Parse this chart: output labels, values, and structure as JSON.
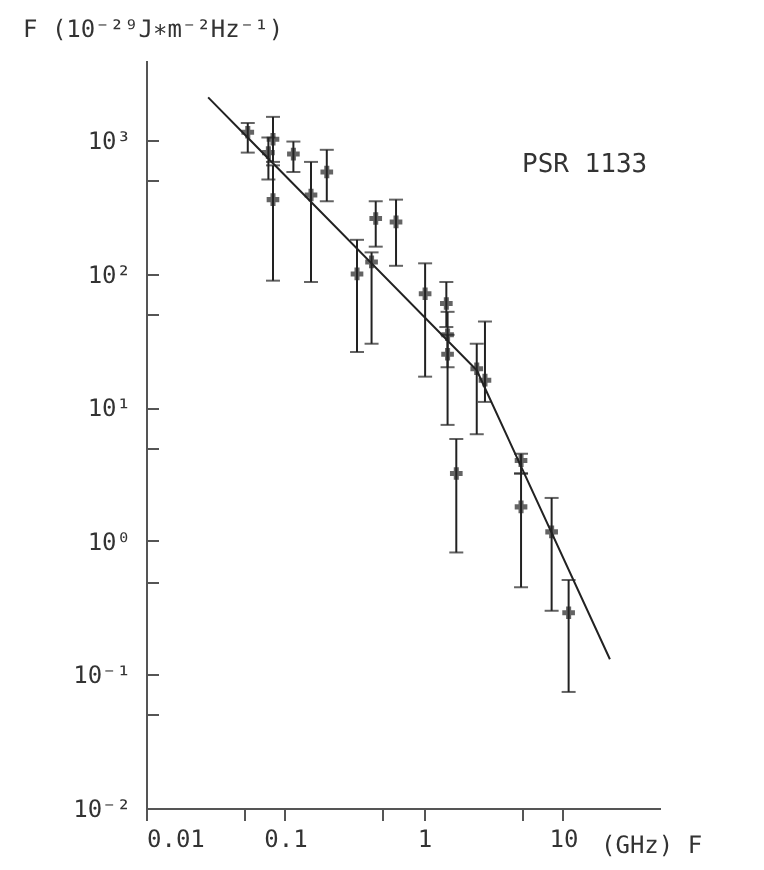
{
  "chart_data": {
    "type": "scatter",
    "ylabel": "F (10⁻²⁹J∗m⁻²Hz⁻¹)",
    "xlabel": "(GHz) F",
    "log": "xy",
    "xlim": [
      0.01,
      50
    ],
    "ylim": [
      0.01,
      4000
    ],
    "xticks": [
      0.01,
      {
        "value": 0.05,
        "label": null
      },
      0.1,
      {
        "value": 0.5,
        "label": null
      },
      1,
      {
        "value": 5,
        "label": null
      },
      10
    ],
    "yticks": [
      {
        "value": 0.01,
        "label": "10⁻²"
      },
      {
        "value": 0.05,
        "label": null
      },
      {
        "value": 0.1,
        "label": "10⁻¹"
      },
      {
        "value": 0.5,
        "label": null
      },
      {
        "value": 1,
        "label": "10⁰"
      },
      {
        "value": 5,
        "label": null
      },
      {
        "value": 10,
        "label": "10¹"
      },
      {
        "value": 50,
        "label": null
      },
      {
        "value": 100,
        "label": "10²"
      },
      {
        "value": 500,
        "label": null
      },
      {
        "value": 1000,
        "label": "10³"
      }
    ],
    "annotations": [
      "PSR 1133"
    ],
    "series": [
      {
        "type": "scatter",
        "color": "#222222",
        "marker": "cross",
        "x": [
          0.054,
          0.076,
          0.082,
          0.082,
          0.115,
          0.154,
          0.2,
          0.33,
          0.42,
          0.45,
          0.63,
          1.02,
          1.45,
          1.48,
          1.48,
          1.71,
          2.4,
          2.75,
          5.0,
          5.0,
          8.3,
          11
        ],
        "values": [
          1150,
          810,
          1020,
          360,
          790,
          390,
          580,
          100,
          123,
          260,
          245,
          71,
          60,
          35,
          25,
          3.2,
          19.5,
          16,
          4.0,
          1.8,
          1.17,
          0.29
        ],
        "errors": [
          [
            810,
            1350
          ],
          [
            510,
            1050
          ],
          [
            690,
            1500
          ],
          [
            89,
            650
          ],
          [
            580,
            980
          ],
          [
            87,
            690
          ],
          [
            350,
            850
          ],
          [
            26,
            180
          ],
          [
            30,
            145
          ],
          [
            160,
            350
          ],
          [
            115,
            360
          ],
          [
            17,
            120
          ],
          [
            40,
            87
          ],
          [
            20,
            52
          ],
          [
            7.4,
            35
          ],
          [
            0.82,
            5.8
          ],
          [
            6.3,
            30
          ],
          [
            11,
            44
          ],
          [
            3.2,
            4.5
          ],
          [
            0.45,
            3.2
          ],
          [
            0.3,
            2.1
          ],
          [
            0.074,
            0.51
          ]
        ]
      },
      {
        "type": "line",
        "color": "#222222",
        "x": [
          0.028,
          2.4,
          21.8
        ],
        "values": [
          2100,
          19,
          0.13
        ],
        "line_style": "solid",
        "marker": "none"
      }
    ]
  }
}
